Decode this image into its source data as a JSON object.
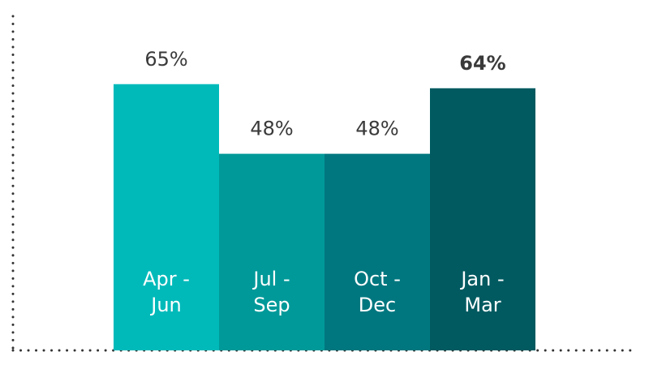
{
  "chart_data": {
    "type": "bar",
    "categories": [
      "Apr - Jun",
      "Jul - Sep",
      "Oct - Dec",
      "Jan - Mar"
    ],
    "category_lines": [
      [
        "Apr -",
        "Jun"
      ],
      [
        "Jul -",
        "Sep"
      ],
      [
        "Oct -",
        "Dec"
      ],
      [
        "Jan -",
        "Mar"
      ]
    ],
    "values": [
      65,
      48,
      48,
      64
    ],
    "value_labels": [
      "65%",
      "48%",
      "48%",
      "64%"
    ],
    "highlighted_index": 3,
    "ylim": [
      0,
      100
    ],
    "grid": false,
    "colors": [
      "#00BABA",
      "#009999",
      "#00777F",
      "#005A60"
    ],
    "title": "",
    "xlabel": "",
    "ylabel": ""
  }
}
